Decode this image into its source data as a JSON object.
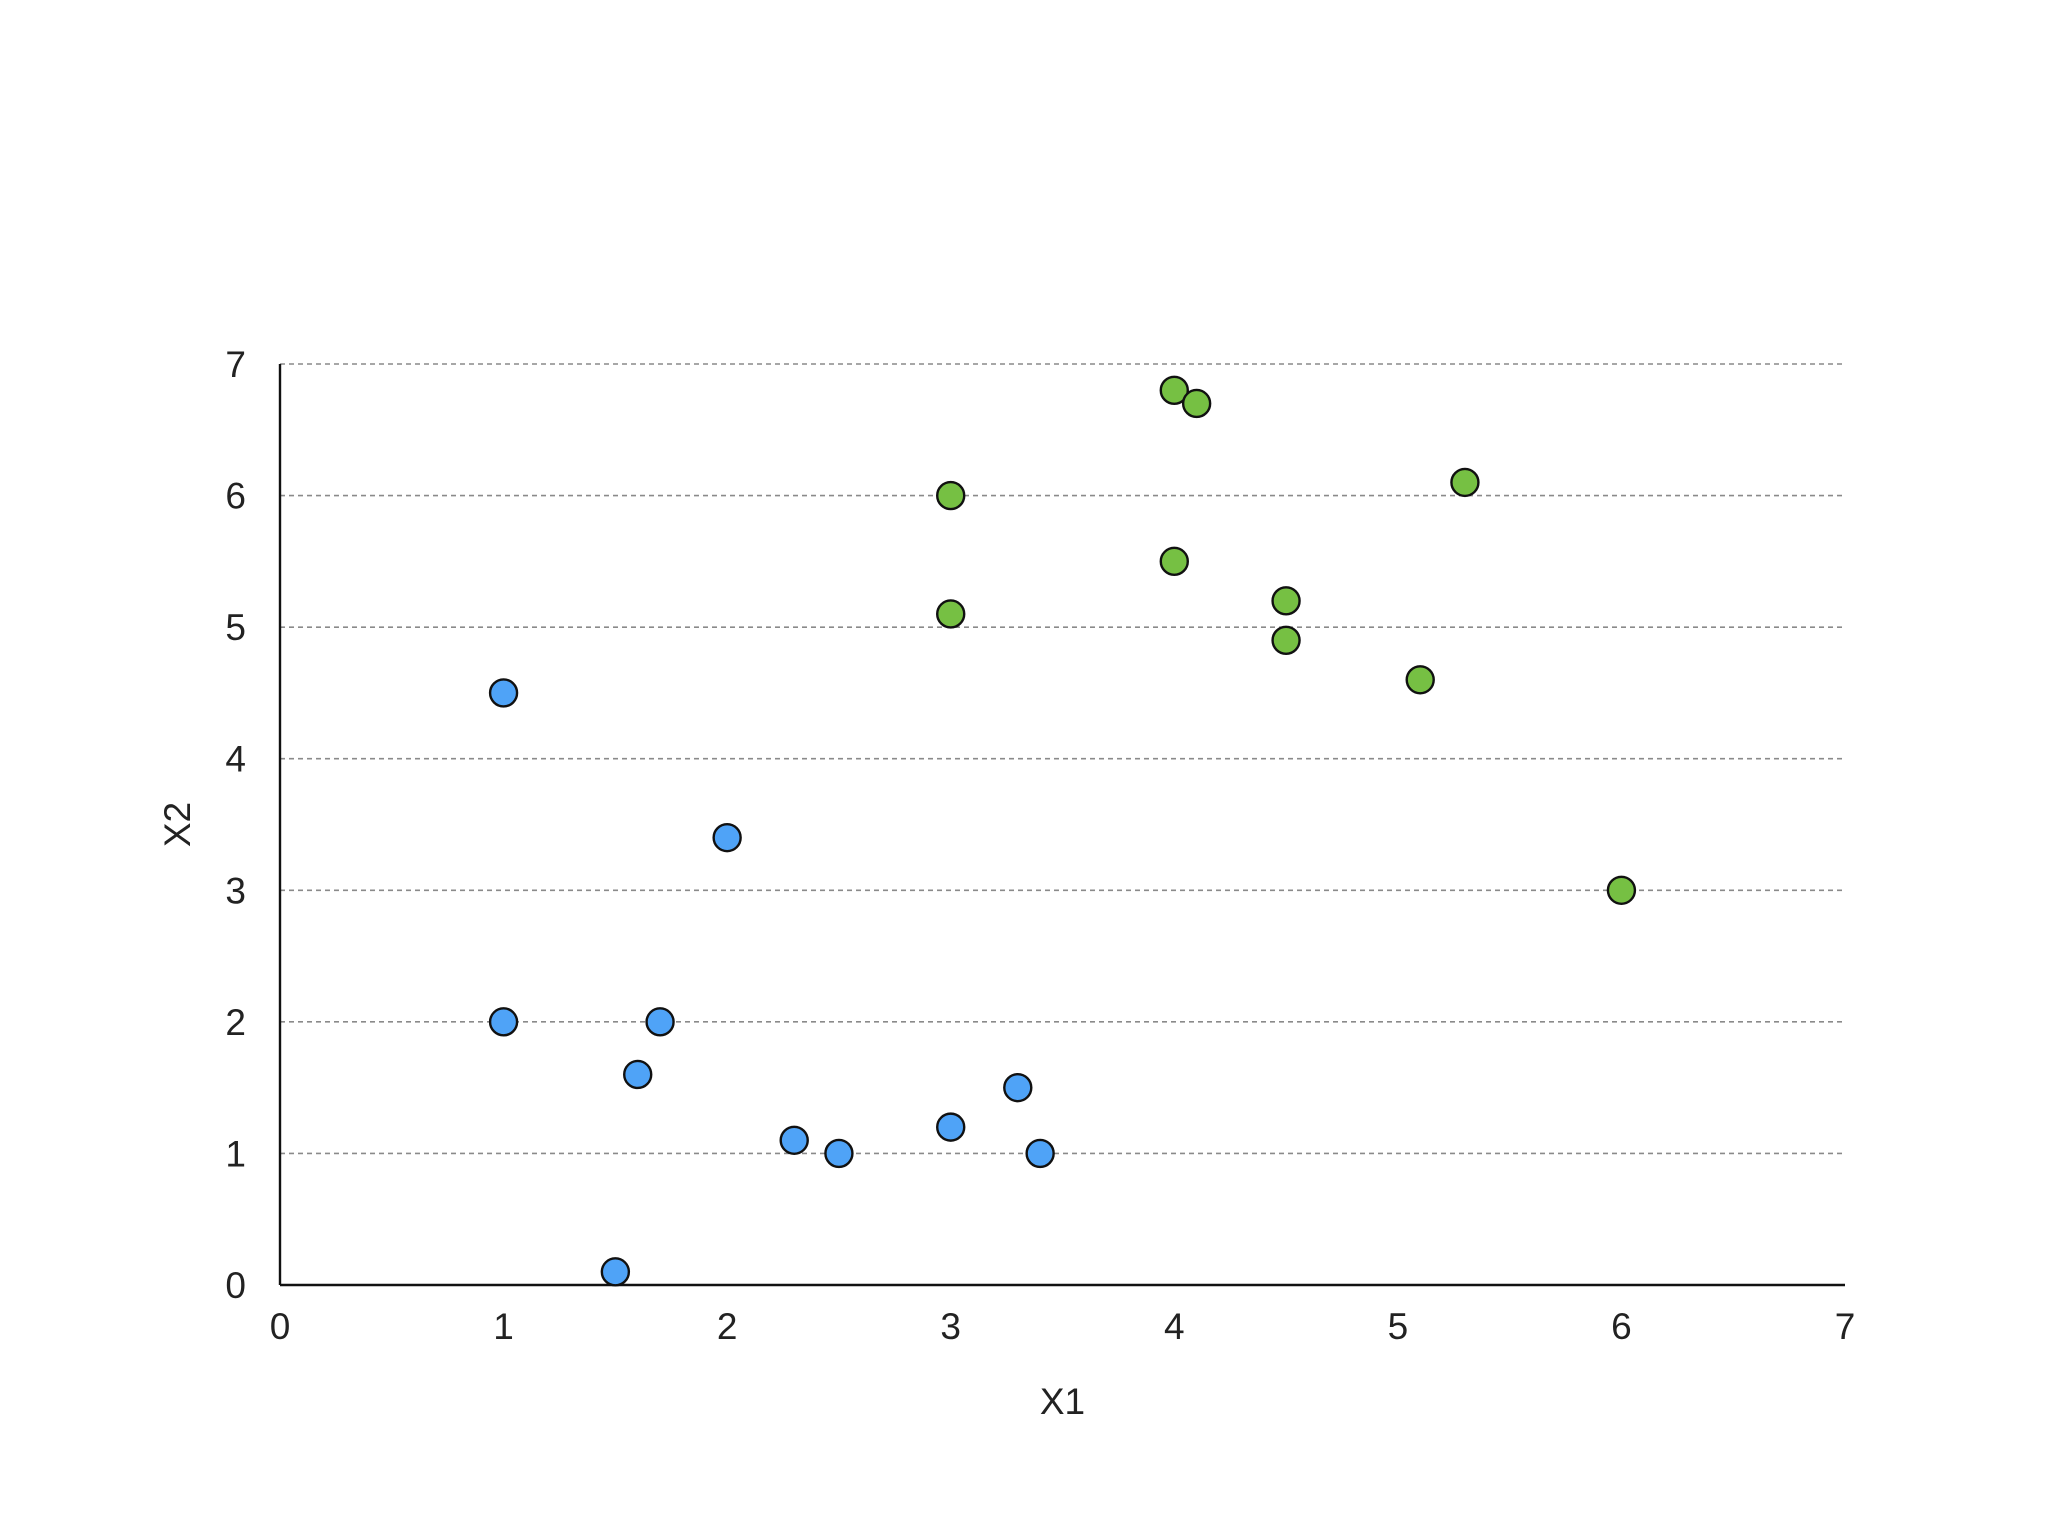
{
  "chart_data": {
    "type": "scatter",
    "title": "",
    "xlabel": "X1",
    "ylabel": "X2",
    "xlim": [
      0,
      7
    ],
    "ylim": [
      0,
      7
    ],
    "xticks": [
      "0",
      "1",
      "2",
      "3",
      "4",
      "5",
      "6",
      "7"
    ],
    "yticks": [
      "0",
      "1",
      "2",
      "3",
      "4",
      "5",
      "6",
      "7"
    ],
    "grid": "horizontal dashed",
    "legend": "none",
    "series": [
      {
        "color": "#4fa3f7",
        "points": [
          {
            "x": 1.0,
            "y": 4.5
          },
          {
            "x": 2.0,
            "y": 3.4
          },
          {
            "x": 1.0,
            "y": 2.0
          },
          {
            "x": 1.7,
            "y": 2.0
          },
          {
            "x": 1.6,
            "y": 1.6
          },
          {
            "x": 2.3,
            "y": 1.1
          },
          {
            "x": 2.5,
            "y": 1.0
          },
          {
            "x": 3.0,
            "y": 1.2
          },
          {
            "x": 3.3,
            "y": 1.5
          },
          {
            "x": 3.4,
            "y": 1.0
          },
          {
            "x": 1.5,
            "y": 0.1
          }
        ]
      },
      {
        "color": "#76c043",
        "points": [
          {
            "x": 4.0,
            "y": 6.8
          },
          {
            "x": 4.1,
            "y": 6.7
          },
          {
            "x": 3.0,
            "y": 6.0
          },
          {
            "x": 5.3,
            "y": 6.1
          },
          {
            "x": 4.0,
            "y": 5.5
          },
          {
            "x": 3.0,
            "y": 5.1
          },
          {
            "x": 4.5,
            "y": 5.2
          },
          {
            "x": 4.5,
            "y": 4.9
          },
          {
            "x": 5.1,
            "y": 4.6
          },
          {
            "x": 6.0,
            "y": 3.0
          }
        ]
      }
    ]
  }
}
